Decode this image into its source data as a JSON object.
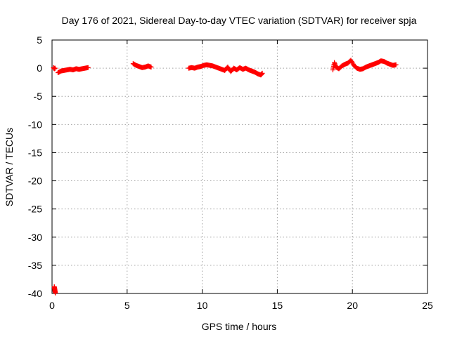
{
  "chart_data": {
    "type": "scatter",
    "title": "Day 176 of 2021, Sidereal Day-to-day VTEC variation (SDTVAR) for receiver spja",
    "xlabel": "GPS time / hours",
    "ylabel": "SDTVAR / TECUs",
    "xlim": [
      0,
      25
    ],
    "ylim": [
      -40,
      5
    ],
    "xticks": [
      0,
      5,
      10,
      15,
      20,
      25
    ],
    "yticks": [
      5,
      0,
      -5,
      -10,
      -15,
      -20,
      -25,
      -30,
      -35,
      -40
    ],
    "grid": true,
    "marker": "+",
    "color": "#ff0000",
    "series": [
      {
        "name": "SDTVAR",
        "segments": [
          {
            "x": [
              0.1,
              0.15,
              0.2
            ],
            "y": [
              0.1,
              -0.1,
              0.0
            ]
          },
          {
            "x": [
              0.15,
              0.18,
              0.2,
              0.22
            ],
            "y": [
              -38.8,
              -39.2,
              -39.6,
              -39.9
            ]
          },
          {
            "x": [
              0.4,
              0.6,
              0.8,
              1.0,
              1.2,
              1.4,
              1.6,
              1.8,
              2.0,
              2.2,
              2.4
            ],
            "y": [
              -0.8,
              -0.5,
              -0.4,
              -0.3,
              -0.2,
              -0.3,
              -0.1,
              -0.2,
              -0.1,
              0.0,
              0.1
            ]
          },
          {
            "x": [
              5.4,
              5.6,
              5.8,
              6.0,
              6.2,
              6.4,
              6.6
            ],
            "y": [
              0.8,
              0.5,
              0.3,
              0.1,
              0.2,
              0.4,
              0.2
            ]
          },
          {
            "x": [
              9.1,
              9.3,
              9.5,
              9.7,
              9.9,
              10.1,
              10.3,
              10.5,
              10.7,
              10.9,
              11.1,
              11.3,
              11.5,
              11.7,
              11.9,
              12.1,
              12.3,
              12.5,
              12.7,
              12.9,
              13.1,
              13.3,
              13.5,
              13.7,
              13.9,
              14.0
            ],
            "y": [
              0.0,
              0.1,
              0.0,
              0.2,
              0.3,
              0.5,
              0.6,
              0.5,
              0.4,
              0.2,
              0.0,
              -0.2,
              -0.4,
              0.2,
              -0.6,
              0.0,
              -0.3,
              0.1,
              -0.2,
              0.0,
              -0.3,
              -0.5,
              -0.7,
              -1.0,
              -1.2,
              -0.9
            ]
          },
          {
            "x": [
              18.7,
              18.8,
              18.9,
              19.1,
              19.3,
              19.5,
              19.7,
              19.9,
              20.1,
              20.3,
              20.5,
              20.7,
              20.9,
              21.1,
              21.3,
              21.5,
              21.7,
              21.9,
              22.1,
              22.3,
              22.5,
              22.7,
              22.9
            ],
            "y": [
              -0.3,
              1.0,
              0.2,
              -0.1,
              0.4,
              0.7,
              0.9,
              1.4,
              0.5,
              0.0,
              -0.2,
              -0.1,
              0.2,
              0.4,
              0.6,
              0.8,
              1.0,
              1.3,
              1.2,
              0.9,
              0.7,
              0.5,
              0.6
            ]
          }
        ]
      }
    ]
  }
}
